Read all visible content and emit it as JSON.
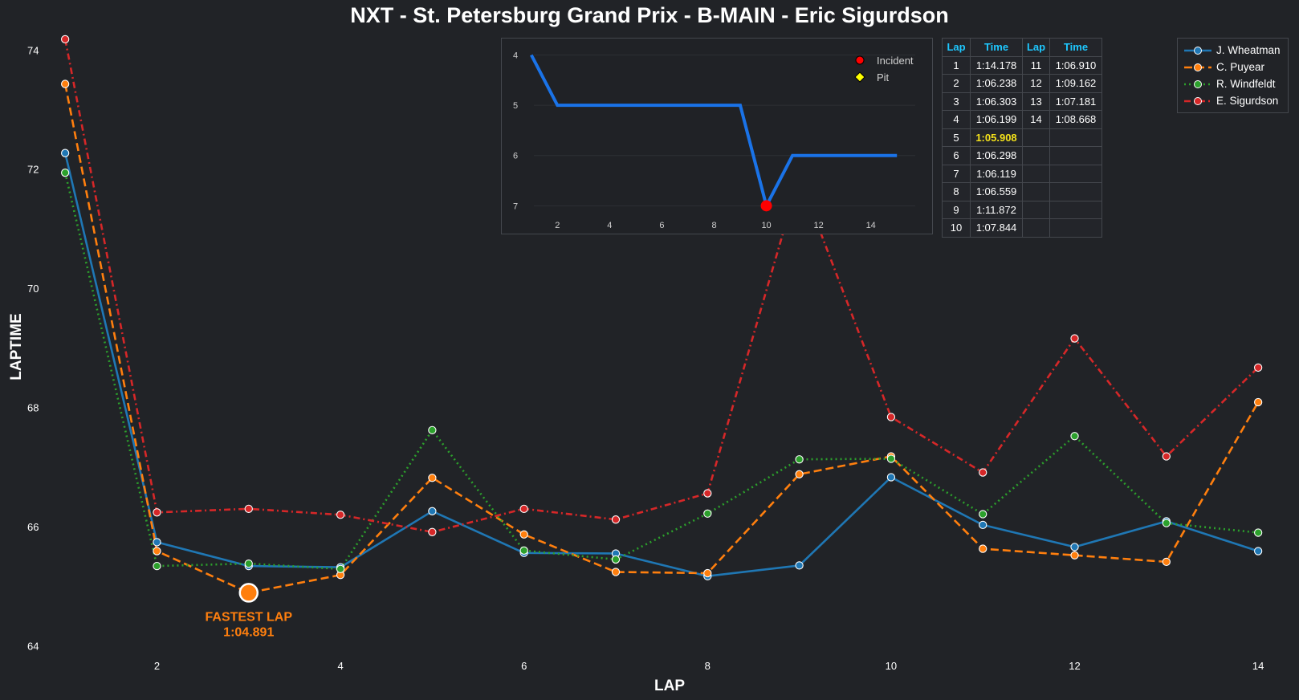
{
  "chart_data": [
    {
      "type": "line",
      "title": "NXT - St. Petersburg Grand Prix - B-MAIN - Eric Sigurdson",
      "xlabel": "LAP",
      "ylabel": "LAPTIME",
      "xticks": [
        2,
        4,
        6,
        8,
        10,
        12,
        14
      ],
      "yticks": [
        64,
        66,
        68,
        70,
        72,
        74
      ],
      "xlim": [
        0.5,
        14.2
      ],
      "ylim": [
        63.9,
        74.3
      ],
      "grid": false,
      "legend_position": "top-right",
      "series": [
        {
          "name": "J. Wheatman",
          "color": "#1f77b4",
          "dash": "solid",
          "x": [
            1,
            2,
            3,
            4,
            5,
            6,
            7,
            8,
            9,
            10,
            11,
            12,
            13,
            14
          ],
          "values": [
            72.27,
            65.74,
            65.34,
            65.32,
            66.26,
            65.56,
            65.55,
            65.17,
            65.35,
            66.83,
            66.03,
            65.66,
            66.09,
            65.59
          ]
        },
        {
          "name": "C. Puyear",
          "color": "#ff7f0e",
          "dash": "dashed",
          "x": [
            1,
            2,
            3,
            4,
            5,
            6,
            7,
            8,
            9,
            10,
            11,
            12,
            13,
            14
          ],
          "values": [
            73.43,
            65.59,
            64.891,
            65.19,
            66.82,
            65.87,
            65.24,
            65.22,
            66.88,
            67.18,
            65.63,
            65.52,
            65.41,
            68.09
          ]
        },
        {
          "name": "R. Windfeldt",
          "color": "#2ca02c",
          "dash": "dotted",
          "x": [
            1,
            2,
            3,
            4,
            5,
            6,
            7,
            8,
            9,
            10,
            11,
            12,
            13,
            14
          ],
          "values": [
            71.94,
            65.34,
            65.38,
            65.29,
            67.62,
            65.6,
            65.45,
            66.22,
            67.13,
            67.14,
            66.21,
            67.52,
            66.06,
            65.9
          ]
        },
        {
          "name": "E. Sigurdson",
          "color": "#d62728",
          "dash": "dashdot",
          "x": [
            1,
            2,
            3,
            4,
            5,
            6,
            7,
            8,
            9,
            10,
            11,
            12,
            13,
            14
          ],
          "values": [
            74.18,
            66.24,
            66.3,
            66.2,
            65.91,
            66.3,
            66.12,
            66.56,
            71.87,
            67.84,
            66.91,
            69.16,
            67.18,
            68.67
          ]
        }
      ],
      "annotation": {
        "label": "FASTEST LAP",
        "value": "1:04.891",
        "x": 3,
        "y": 64.891,
        "color": "#ff7f0e"
      }
    },
    {
      "type": "line",
      "xticks": [
        2,
        4,
        6,
        8,
        10,
        12,
        14
      ],
      "yticks": [
        4,
        5,
        6,
        7
      ],
      "xlim": [
        0.3,
        15.7
      ],
      "ylim": [
        7.25,
        3.8
      ],
      "y_inverted": true,
      "grid": true,
      "legend_position": "top-right",
      "series": [
        {
          "color": "#1a73e8",
          "x": [
            1,
            2,
            3,
            4,
            5,
            6,
            7,
            8,
            9,
            10,
            11,
            12,
            13,
            14,
            15
          ],
          "values": [
            4,
            5,
            5,
            5,
            5,
            5,
            5,
            5,
            5,
            7,
            6,
            6,
            6,
            6,
            6
          ]
        }
      ],
      "legend": [
        {
          "label": "Incident",
          "color": "#ff0000",
          "marker": "circle"
        },
        {
          "label": "Pit",
          "color": "#ffff00",
          "marker": "diamond"
        }
      ],
      "incidents": [
        {
          "x": 10,
          "y": 7
        }
      ]
    }
  ],
  "lap_table": {
    "headers": [
      "Lap",
      "Time",
      "Lap",
      "Time"
    ],
    "rows": [
      [
        "1",
        "1:14.178",
        "11",
        "1:06.910"
      ],
      [
        "2",
        "1:06.238",
        "12",
        "1:09.162"
      ],
      [
        "3",
        "1:06.303",
        "13",
        "1:07.181"
      ],
      [
        "4",
        "1:06.199",
        "14",
        "1:08.668"
      ],
      [
        "5",
        "1:05.908",
        "",
        ""
      ],
      [
        "6",
        "1:06.298",
        "",
        ""
      ],
      [
        "7",
        "1:06.119",
        "",
        ""
      ],
      [
        "8",
        "1:06.559",
        "",
        ""
      ],
      [
        "9",
        "1:11.872",
        "",
        ""
      ],
      [
        "10",
        "1:07.844",
        "",
        ""
      ]
    ],
    "best_lap_row": 4,
    "highlight_color": "#f4e21b",
    "header_color": "#1ec8ff"
  },
  "colors": {
    "background": "#212327",
    "text": "#ffffff",
    "border": "#44474d"
  }
}
